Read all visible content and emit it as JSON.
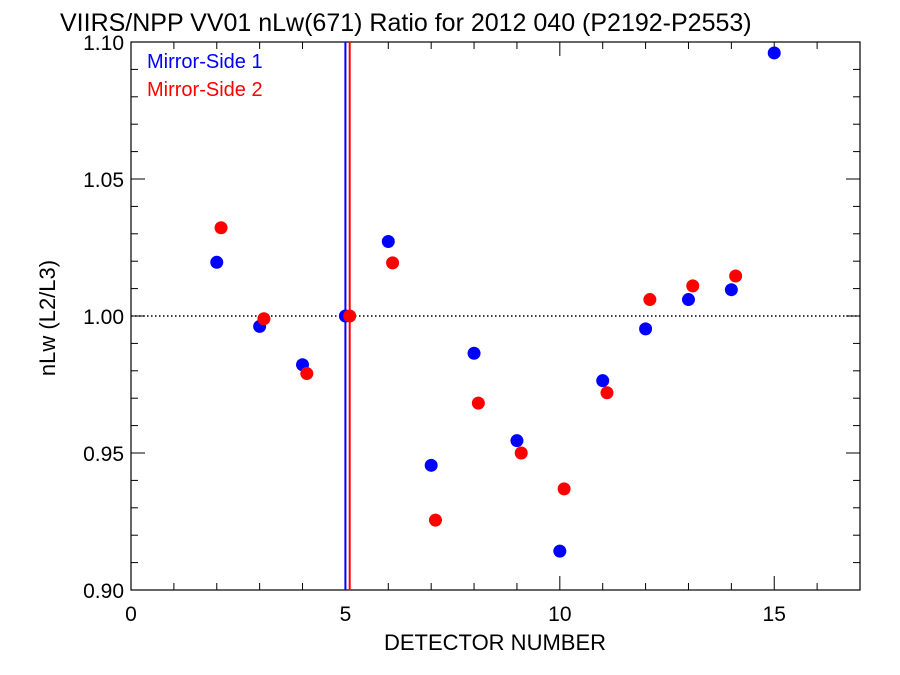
{
  "chart_data": {
    "type": "scatter",
    "title": "VIIRS/NPP VV01 nLw(671) Ratio for 2012 040 (P2192-P2553)",
    "xlabel": "DETECTOR NUMBER",
    "ylabel": "nLw (L2/L3)",
    "xlim": [
      0,
      17
    ],
    "ylim": [
      0.9,
      1.1
    ],
    "xticks": [
      0,
      5,
      10,
      15
    ],
    "xtick_labels": [
      "0",
      "5",
      "10",
      "15"
    ],
    "yticks": [
      0.9,
      0.95,
      1.0,
      1.05,
      1.1
    ],
    "ytick_labels": [
      "0.90",
      "0.95",
      "1.00",
      "1.05",
      "1.10"
    ],
    "grid": false,
    "legend_placement": "top-left",
    "reference_line": {
      "y": 1.0,
      "style": "dotted",
      "color": "#000000"
    },
    "vertical_lines": [
      {
        "x": 5.0,
        "color": "#0000ff"
      },
      {
        "x": 5.1,
        "color": "#ff0000"
      }
    ],
    "series": [
      {
        "name": "Mirror-Side 1",
        "color": "#0000ff",
        "x": [
          2,
          3,
          4,
          5,
          6,
          7,
          8,
          9,
          10,
          11,
          12,
          13,
          14,
          15
        ],
        "y": [
          1.0196,
          0.9962,
          0.9822,
          1.0,
          1.0272,
          0.9455,
          0.9864,
          0.9545,
          0.9142,
          0.9764,
          0.9953,
          1.006,
          1.0096,
          1.096
        ]
      },
      {
        "name": "Mirror-Side 2",
        "color": "#ff0000",
        "x": [
          2.1,
          3.1,
          4.1,
          5.1,
          6.1,
          7.1,
          8.1,
          9.1,
          10.1,
          11.1,
          12.1,
          13.1,
          14.1
        ],
        "y": [
          1.0322,
          0.999,
          0.979,
          1.0,
          1.0194,
          0.9255,
          0.9682,
          0.95,
          0.9369,
          0.972,
          1.006,
          1.011,
          1.0146
        ]
      }
    ]
  }
}
